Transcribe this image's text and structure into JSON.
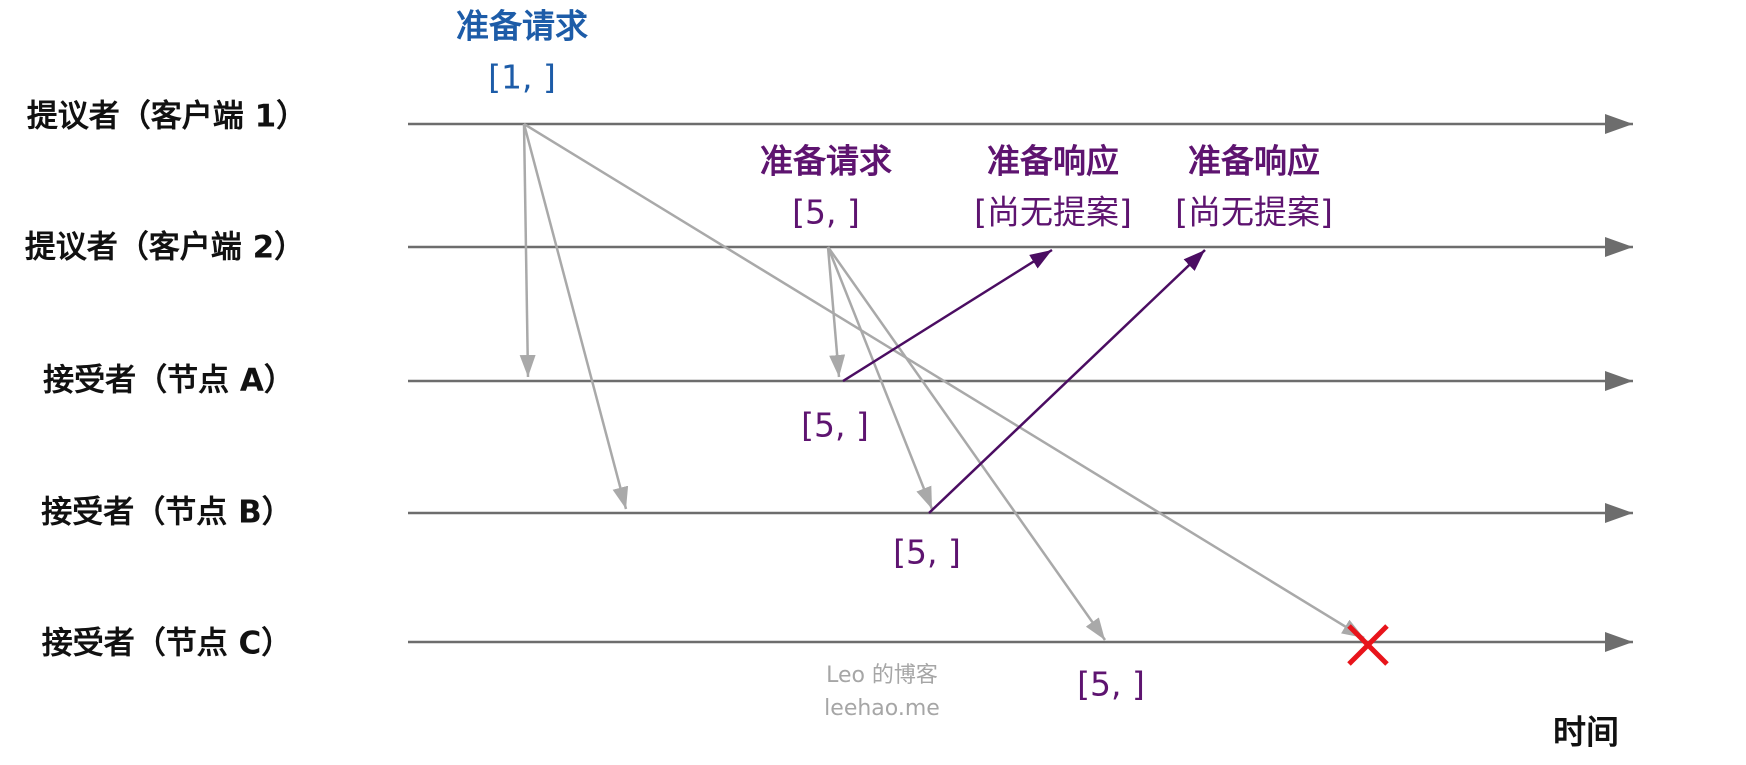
{
  "lanes": {
    "client1": "提议者（客户端 1）",
    "client2": "提议者（客户端 2）",
    "acceptor_a": "接受者（节点 A）",
    "acceptor_b": "接受者（节点 B）",
    "acceptor_c": "接受者（节点 C）"
  },
  "time_axis_label": "时间",
  "client1_prepare": {
    "title": "准备请求",
    "proposal": "[1, ]"
  },
  "client2_prepare": {
    "title": "准备请求",
    "proposal": "[5, ]"
  },
  "response_from_a": {
    "title": "准备响应",
    "content": "[尚无提案]"
  },
  "response_from_b": {
    "title": "准备响应",
    "content": "[尚无提案]"
  },
  "acceptor_state": {
    "a": "[5, ]",
    "b": "[5, ]",
    "c": "[5, ]"
  },
  "watermark": {
    "name": "Leo 的博客",
    "site": "leehao.me"
  },
  "colors": {
    "timeline": "#6d6d6d",
    "request_arrow": "#a9a9a9",
    "response_arrow": "#4b0d62",
    "client1_text": "#1d5ca8",
    "client2_text": "#5e1470",
    "lost_marker": "#e8141b",
    "watermark": "#a6a6a6"
  },
  "icons": {
    "lost_message": "x-icon"
  }
}
